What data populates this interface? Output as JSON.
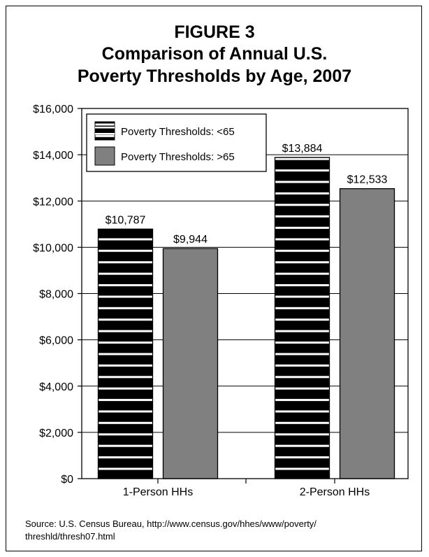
{
  "figure": {
    "label": "FIGURE 3",
    "title_line1": "Comparison of Annual U.S.",
    "title_line2": "Poverty Thresholds by Age, 2007"
  },
  "source": {
    "line1": "Source: U.S. Census Bureau, http://www.census.gov/hhes/www/poverty/",
    "line2": "threshld/thresh07.html"
  },
  "chart_data": {
    "type": "bar",
    "title": "Comparison of Annual U.S. Poverty Thresholds by Age, 2007",
    "categories": [
      "1-Person HHs",
      "2-Person HHs"
    ],
    "series": [
      {
        "name": "Poverty Thresholds: <65",
        "values": [
          10787,
          13884
        ],
        "labels": [
          "$10,787",
          "$13,884"
        ],
        "color": "#000000",
        "pattern": "white-stripes"
      },
      {
        "name": "Poverty Thresholds: >65",
        "values": [
          9944,
          12533
        ],
        "labels": [
          "$9,944",
          "$12,533"
        ],
        "color": "#808080",
        "pattern": "solid"
      }
    ],
    "ylim": [
      0,
      16000
    ],
    "yticks": [
      0,
      2000,
      4000,
      6000,
      8000,
      10000,
      12000,
      14000,
      16000
    ],
    "ytick_labels": [
      "$0",
      "$2,000",
      "$4,000",
      "$6,000",
      "$8,000",
      "$10,000",
      "$12,000",
      "$14,000",
      "$16,000"
    ],
    "grid": true,
    "legend_position": "top-left"
  }
}
